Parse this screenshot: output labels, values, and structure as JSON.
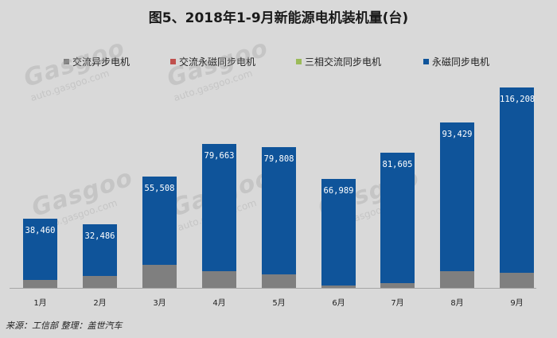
{
  "title": "图5、2018年1-9月新能源电机装机量(台)",
  "legend": [
    {
      "label": "交流异步电机",
      "color": "#7f7f7f"
    },
    {
      "label": "交流永磁同步电机",
      "color": "#c0504d"
    },
    {
      "label": "三相交流同步电机",
      "color": "#9bbb59"
    },
    {
      "label": "永磁同步电机",
      "color": "#0f549a"
    }
  ],
  "source": "来源：工信部  整理：盖世汽车",
  "watermark": {
    "logo": "Gasgoo",
    "url": "auto.gasgoo.com",
    "cn": "盖世汽车"
  },
  "chart_data": {
    "type": "bar",
    "stacked": true,
    "title": "图5、2018年1-9月新能源电机装机量(台)",
    "xlabel": "",
    "ylabel": "",
    "categories": [
      "1月",
      "2月",
      "3月",
      "4月",
      "5月",
      "6月",
      "7月",
      "8月",
      "9月"
    ],
    "series": [
      {
        "name": "交流异步电机",
        "color": "#7f7f7f",
        "values": [
          5000,
          7500,
          14500,
          10500,
          8500,
          1500,
          3000,
          10500,
          9500
        ]
      },
      {
        "name": "交流永磁同步电机",
        "color": "#c0504d",
        "values": [
          0,
          0,
          0,
          0,
          0,
          0,
          0,
          0,
          0
        ]
      },
      {
        "name": "三相交流同步电机",
        "color": "#9bbb59",
        "values": [
          0,
          0,
          0,
          0,
          0,
          0,
          0,
          0,
          0
        ]
      },
      {
        "name": "永磁同步电机",
        "color": "#0f549a",
        "values": [
          38460,
          32486,
          55508,
          79663,
          79808,
          66989,
          81605,
          93429,
          116208
        ]
      }
    ],
    "data_labels": [
      "38,460",
      "32,486",
      "55,508",
      "79,663",
      "79,808",
      "66,989",
      "81,605",
      "93,429",
      "116,208"
    ],
    "legend_position": "top",
    "grid": false,
    "y_axis_visible": false
  }
}
